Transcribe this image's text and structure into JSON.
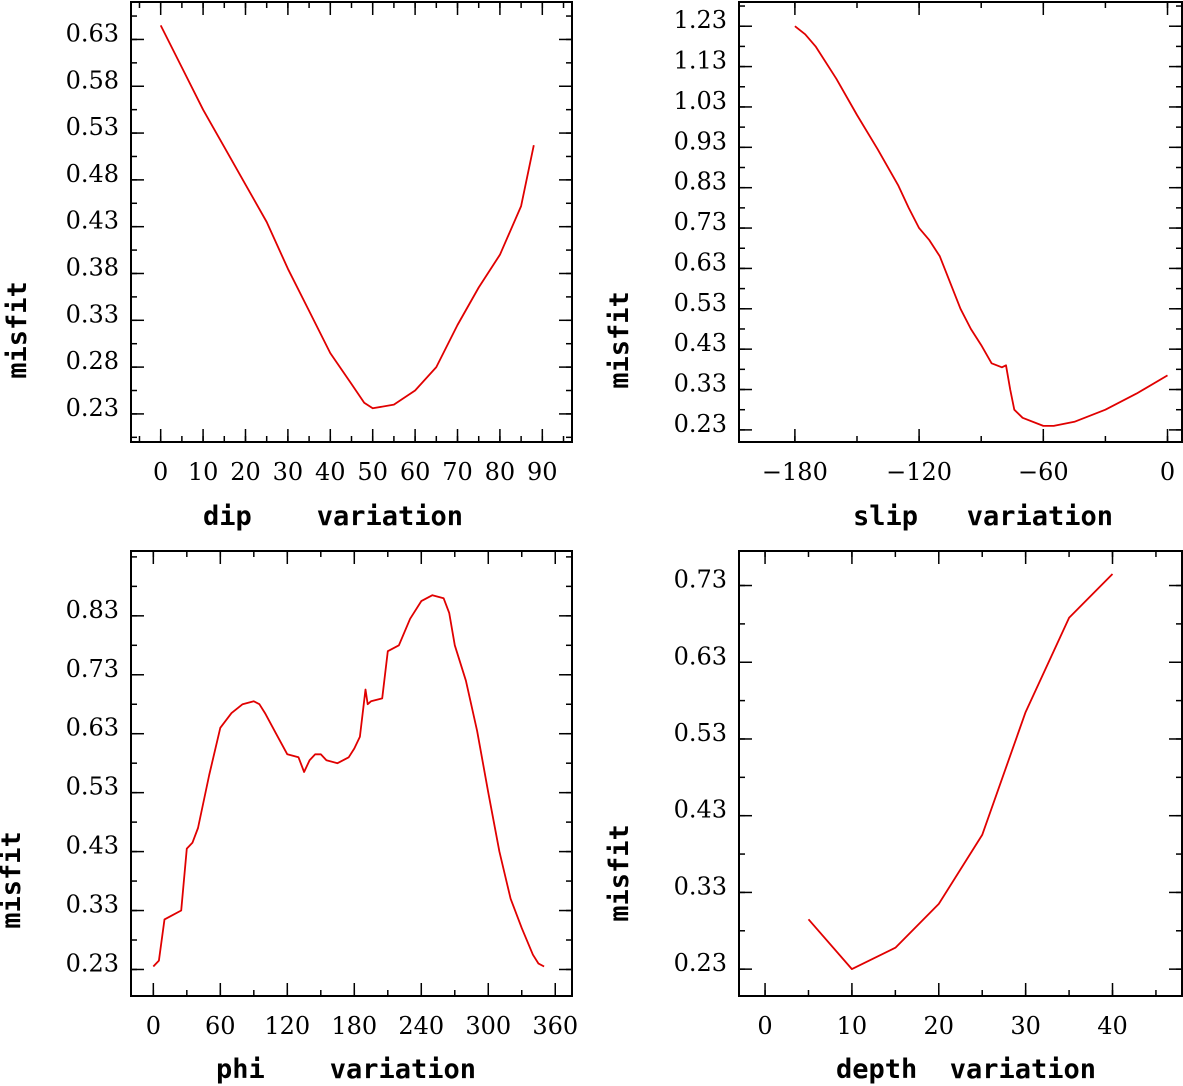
{
  "chart_data": [
    {
      "type": "line",
      "xlabel": "dip    variation",
      "ylabel": "misfit",
      "xlim": [
        -7,
        97
      ],
      "ylim": [
        0.2,
        0.67
      ],
      "xticks": [
        0,
        10,
        20,
        30,
        40,
        50,
        60,
        70,
        80,
        90
      ],
      "xtick_labels": [
        "0",
        "10",
        "20",
        "30",
        "40",
        "50",
        "60",
        "70",
        "80",
        "90"
      ],
      "yticks": [
        0.23,
        0.28,
        0.33,
        0.38,
        0.43,
        0.48,
        0.53,
        0.58,
        0.63
      ],
      "ytick_labels": [
        "0.23",
        "0.28",
        "0.33",
        "0.38",
        "0.43",
        "0.48",
        "0.53",
        "0.58",
        "0.63"
      ],
      "series": [
        {
          "name": "misfit",
          "x": [
            0,
            5,
            10,
            15,
            20,
            25,
            30,
            35,
            40,
            45,
            48,
            50,
            55,
            60,
            65,
            70,
            75,
            80,
            85,
            88
          ],
          "y": [
            0.645,
            0.6,
            0.555,
            0.515,
            0.475,
            0.435,
            0.385,
            0.34,
            0.295,
            0.262,
            0.242,
            0.236,
            0.24,
            0.255,
            0.28,
            0.325,
            0.365,
            0.4,
            0.452,
            0.517
          ]
        }
      ]
    },
    {
      "type": "line",
      "xlabel": "slip   variation",
      "ylabel": "misfit",
      "xlim": [
        -207,
        7
      ],
      "ylim": [
        0.2,
        1.29
      ],
      "xticks": [
        -180,
        -120,
        -60,
        0
      ],
      "xtick_labels": [
        "−180",
        "−120",
        "−60",
        "0"
      ],
      "yticks": [
        0.23,
        0.33,
        0.43,
        0.53,
        0.63,
        0.73,
        0.83,
        0.93,
        1.03,
        1.13,
        1.23
      ],
      "ytick_labels": [
        "0.23",
        "0.33",
        "0.43",
        "0.53",
        "0.63",
        "0.73",
        "0.83",
        "0.93",
        "1.03",
        "1.13",
        "1.23"
      ],
      "series": [
        {
          "name": "misfit",
          "x": [
            -180,
            -175,
            -170,
            -160,
            -150,
            -140,
            -130,
            -125,
            -120,
            -115,
            -110,
            -100,
            -95,
            -90,
            -85,
            -80,
            -78,
            -76,
            -74,
            -70,
            -60,
            -55,
            -45,
            -30,
            -15,
            0
          ],
          "y": [
            1.23,
            1.21,
            1.18,
            1.1,
            1.01,
            0.925,
            0.835,
            0.78,
            0.73,
            0.7,
            0.66,
            0.53,
            0.48,
            0.44,
            0.395,
            0.385,
            0.39,
            0.33,
            0.28,
            0.26,
            0.24,
            0.24,
            0.25,
            0.28,
            0.32,
            0.365
          ]
        }
      ]
    },
    {
      "type": "line",
      "xlabel": "phi    variation",
      "ylabel": "misfit",
      "xlim": [
        -20,
        375
      ],
      "ylim": [
        0.185,
        0.94
      ],
      "xticks": [
        0,
        60,
        120,
        180,
        240,
        300,
        360
      ],
      "xtick_labels": [
        "0",
        "60",
        "120",
        "180",
        "240",
        "300",
        "360"
      ],
      "yticks": [
        0.23,
        0.33,
        0.43,
        0.53,
        0.63,
        0.73,
        0.83
      ],
      "ytick_labels": [
        "0.23",
        "0.33",
        "0.43",
        "0.53",
        "0.63",
        "0.73",
        "0.83"
      ],
      "series": [
        {
          "name": "misfit",
          "x": [
            0,
            5,
            10,
            15,
            25,
            30,
            35,
            40,
            50,
            60,
            70,
            80,
            90,
            95,
            100,
            110,
            120,
            130,
            135,
            140,
            145,
            150,
            155,
            165,
            175,
            180,
            185,
            190,
            192,
            195,
            205,
            210,
            220,
            230,
            240,
            250,
            260,
            265,
            270,
            280,
            290,
            300,
            310,
            320,
            330,
            340,
            345,
            350
          ],
          "y": [
            0.235,
            0.245,
            0.315,
            0.32,
            0.33,
            0.435,
            0.445,
            0.47,
            0.56,
            0.64,
            0.665,
            0.68,
            0.685,
            0.68,
            0.665,
            0.63,
            0.595,
            0.59,
            0.565,
            0.585,
            0.595,
            0.595,
            0.585,
            0.58,
            0.59,
            0.605,
            0.625,
            0.705,
            0.68,
            0.685,
            0.69,
            0.77,
            0.78,
            0.825,
            0.855,
            0.865,
            0.86,
            0.835,
            0.78,
            0.72,
            0.635,
            0.53,
            0.43,
            0.35,
            0.3,
            0.255,
            0.24,
            0.235
          ]
        }
      ]
    },
    {
      "type": "line",
      "xlabel": "depth  variation",
      "ylabel": "misfit",
      "xlim": [
        -3,
        48
      ],
      "ylim": [
        0.195,
        0.775
      ],
      "xticks": [
        0,
        10,
        20,
        30,
        40
      ],
      "xtick_labels": [
        "0",
        "10",
        "20",
        "30",
        "40"
      ],
      "yticks": [
        0.23,
        0.33,
        0.43,
        0.53,
        0.63,
        0.73
      ],
      "ytick_labels": [
        "0.23",
        "0.33",
        "0.43",
        "0.53",
        "0.63",
        "0.73"
      ],
      "series": [
        {
          "name": "misfit",
          "x": [
            5,
            10,
            15,
            20,
            25,
            30,
            35,
            40
          ],
          "y": [
            0.295,
            0.23,
            0.258,
            0.315,
            0.405,
            0.565,
            0.688,
            0.745
          ]
        }
      ]
    }
  ]
}
